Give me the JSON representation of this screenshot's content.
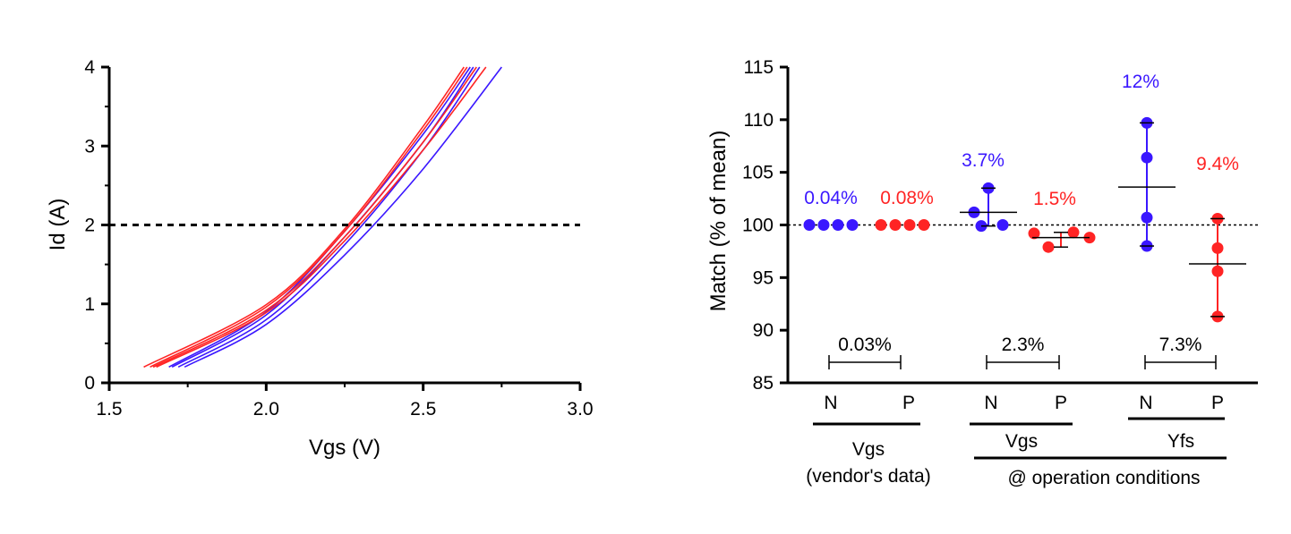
{
  "colors": {
    "blue": "#3a17ff",
    "red": "#ff2424",
    "black": "#000000"
  },
  "chart_data": [
    {
      "type": "line",
      "xlabel": "Vgs (V)",
      "ylabel": "Id (A)",
      "xlim": [
        1.5,
        3.0
      ],
      "ylim": [
        0,
        4
      ],
      "xticks": [
        "1.5",
        "2.0",
        "2.5",
        "3.0"
      ],
      "yticks": [
        "0",
        "1",
        "2",
        "3",
        "4"
      ],
      "reference_line": {
        "y": 2,
        "style": "dashed"
      },
      "series": [
        {
          "color": "blue",
          "x": [
            1.74,
            2.0,
            2.25,
            2.5,
            2.75
          ],
          "y": [
            0.2,
            0.74,
            1.62,
            2.71,
            4.0
          ]
        },
        {
          "color": "blue",
          "x": [
            1.72,
            2.0,
            2.25,
            2.5,
            2.68
          ],
          "y": [
            0.2,
            0.8,
            1.75,
            2.95,
            4.0
          ]
        },
        {
          "color": "blue",
          "x": [
            1.7,
            2.0,
            2.25,
            2.5,
            2.66
          ],
          "y": [
            0.2,
            0.86,
            1.85,
            3.05,
            4.0
          ]
        },
        {
          "color": "blue",
          "x": [
            1.69,
            2.0,
            2.25,
            2.5,
            2.65
          ],
          "y": [
            0.2,
            0.9,
            1.92,
            3.15,
            4.0
          ]
        },
        {
          "color": "red",
          "x": [
            1.61,
            2.0,
            2.25,
            2.5,
            2.63
          ],
          "y": [
            0.2,
            0.99,
            1.95,
            3.25,
            4.0
          ]
        },
        {
          "color": "red",
          "x": [
            1.63,
            2.0,
            2.25,
            2.5,
            2.64
          ],
          "y": [
            0.2,
            0.96,
            1.92,
            3.2,
            4.0
          ]
        },
        {
          "color": "red",
          "x": [
            1.64,
            2.0,
            2.25,
            2.5,
            2.67
          ],
          "y": [
            0.2,
            0.92,
            1.85,
            3.05,
            4.0
          ]
        },
        {
          "color": "red",
          "x": [
            1.65,
            2.0,
            2.25,
            2.5,
            2.7
          ],
          "y": [
            0.2,
            0.89,
            1.8,
            2.95,
            4.0
          ]
        }
      ]
    },
    {
      "type": "scatter",
      "ylabel": "Match (% of mean)",
      "ylim": [
        85,
        115
      ],
      "yticks": [
        "85",
        "90",
        "95",
        "100",
        "105",
        "110",
        "115"
      ],
      "reference_line": {
        "y": 100,
        "style": "dotted"
      },
      "categories": [
        "N",
        "P",
        "N",
        "P",
        "N",
        "P"
      ],
      "groups": [
        {
          "label": "Vgs\n(vendor's data)",
          "columns": [
            0,
            1
          ]
        },
        {
          "label": "Vgs",
          "columns": [
            2,
            3
          ]
        },
        {
          "label": "Yfs",
          "columns": [
            4,
            5
          ]
        }
      ],
      "bracket_label": "@ operation conditions",
      "columns": [
        {
          "color": "blue",
          "values": [
            100.0,
            100.0,
            100.0,
            100.0
          ],
          "mean": 100.0,
          "sd": 0.04,
          "annotation": "0.04%"
        },
        {
          "color": "red",
          "values": [
            100.0,
            100.0,
            100.0,
            100.0
          ],
          "mean": 100.0,
          "sd": 0.08,
          "annotation": "0.08%"
        },
        {
          "color": "blue",
          "values": [
            103.5,
            101.2,
            99.9,
            100.0
          ],
          "mean": 101.2,
          "sd": 3.7,
          "annotation": "3.7%"
        },
        {
          "color": "red",
          "values": [
            99.2,
            97.9,
            99.3,
            98.8
          ],
          "mean": 98.8,
          "sd": 1.5,
          "annotation": "1.5%"
        },
        {
          "color": "blue",
          "values": [
            109.7,
            106.4,
            100.7,
            98.0
          ],
          "mean": 103.6,
          "sd": 12,
          "annotation": "12%"
        },
        {
          "color": "red",
          "values": [
            100.6,
            97.8,
            95.6,
            91.3
          ],
          "mean": 96.3,
          "sd": 9.4,
          "annotation": "9.4%"
        }
      ],
      "differences": [
        "0.03%",
        "2.3%",
        "7.3%"
      ]
    }
  ]
}
